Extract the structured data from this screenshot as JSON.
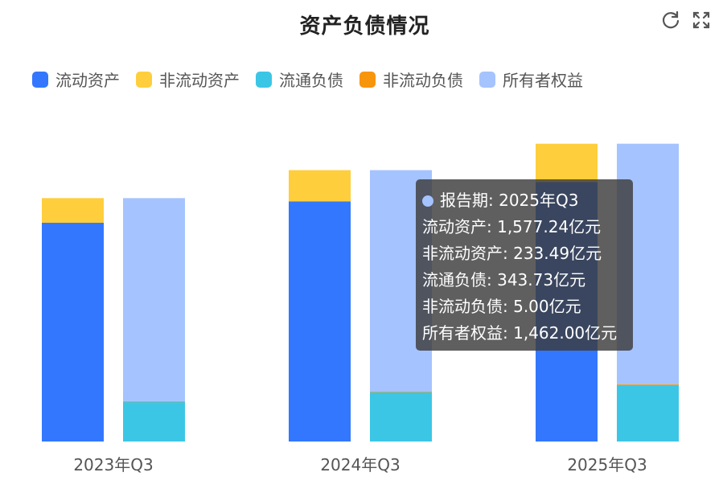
{
  "header": {
    "title": "资产负债情况",
    "refresh_icon": "refresh-icon",
    "fullscreen_icon": "fullscreen-icon"
  },
  "legend": {
    "items": [
      {
        "label": "流动资产",
        "color": "#3377FF"
      },
      {
        "label": "非流动资产",
        "color": "#FFCE3D"
      },
      {
        "label": "流通负债",
        "color": "#3CC6E6"
      },
      {
        "label": "非流动负债",
        "color": "#F7950D"
      },
      {
        "label": "所有者权益",
        "color": "#A5C3FF"
      }
    ]
  },
  "chart_data": {
    "type": "bar",
    "stacked": true,
    "categories": [
      "2023年Q3",
      "2024年Q3",
      "2025年Q3"
    ],
    "unit": "亿元",
    "stacks": [
      {
        "name": "资产",
        "series": [
          "流动资产",
          "非流动资产"
        ]
      },
      {
        "name": "负债与权益",
        "series": [
          "流通负债",
          "非流动负债",
          "所有者权益"
        ]
      }
    ],
    "series": [
      {
        "name": "流动资产",
        "stack": "资产",
        "color": "#3377FF",
        "values": [
          1330,
          1460,
          1577.24
        ]
      },
      {
        "name": "非流动资产",
        "stack": "资产",
        "color": "#FFCE3D",
        "values": [
          150,
          190,
          233.49
        ]
      },
      {
        "name": "流通负债",
        "stack": "负债与权益",
        "color": "#3CC6E6",
        "values": [
          240,
          300,
          343.73
        ]
      },
      {
        "name": "非流动负债",
        "stack": "负债与权益",
        "color": "#F7950D",
        "values": [
          5,
          5,
          5.0
        ]
      },
      {
        "name": "所有者权益",
        "stack": "负债与权益",
        "color": "#A5C3FF",
        "values": [
          1235,
          1345,
          1462.0
        ]
      }
    ],
    "ylim": [
      0,
      2000
    ],
    "grid": false,
    "legend_position": "top-left"
  },
  "tooltip": {
    "dot_color": "#A5C3FF",
    "header": "报告期: 2025年Q3",
    "rows": [
      "流动资产: 1,577.24亿元",
      "非流动资产: 233.49亿元",
      "流通负债: 343.73亿元",
      "非流动负债: 5.00亿元",
      "所有者权益: 1,462.00亿元"
    ]
  }
}
